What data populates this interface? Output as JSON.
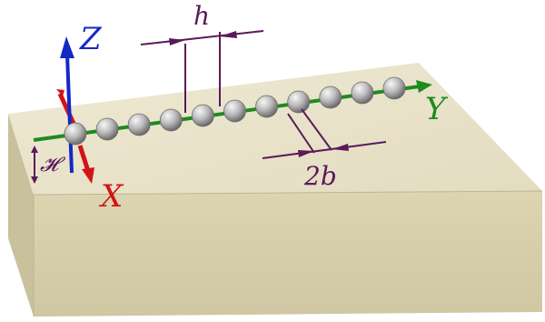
{
  "labels": {
    "z": "Z",
    "x": "X",
    "y": "Y",
    "spacing": "h",
    "diameter": "2b",
    "height": "𝓗"
  },
  "colors": {
    "slab_top": "#ece6cf",
    "slab_front": "#d5cda8",
    "slab_side": "#c9c19c",
    "z_axis": "#1428c8",
    "x_axis": "#d21414",
    "y_axis": "#1f8a1f",
    "dimension": "#5a1a5a",
    "bead_fill": "#b8b8b8",
    "bead_stroke": "#6c6c6c"
  },
  "bead_count": 11
}
